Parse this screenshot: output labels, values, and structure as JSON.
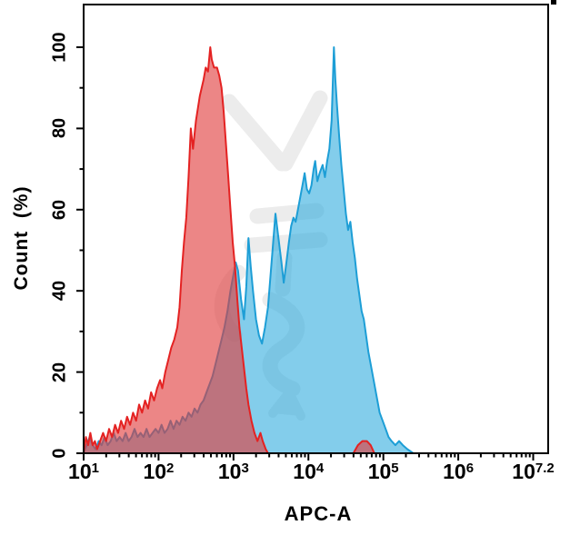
{
  "figure": {
    "xlabel": "APC-A",
    "ylabel": "Count  (%)",
    "background": "#ffffff",
    "frame_color": "#000000"
  },
  "chart_data": {
    "type": "area",
    "title": "",
    "subtitle": "",
    "xlabel": "APC-A",
    "ylabel": "Count (%)",
    "x_scale": "log10",
    "x_range_exp": [
      1,
      7.2
    ],
    "y_range": [
      0,
      100
    ],
    "grid": false,
    "legend": "none",
    "x_ticks": [
      {
        "base": "10",
        "exp": "1",
        "d": 1
      },
      {
        "base": "10",
        "exp": "2",
        "d": 2
      },
      {
        "base": "10",
        "exp": "3",
        "d": 3
      },
      {
        "base": "10",
        "exp": "4",
        "d": 4
      },
      {
        "base": "10",
        "exp": "5",
        "d": 5
      },
      {
        "base": "10",
        "exp": "6",
        "d": 6
      },
      {
        "base": "10",
        "exp": "7.2",
        "d": 7
      }
    ],
    "x_minor_offsets": [
      0.301,
      0.477,
      0.602,
      0.699,
      0.778,
      0.845,
      0.903,
      0.954
    ],
    "x_minor_decades": [
      1,
      2,
      3,
      4,
      5,
      6
    ],
    "y_ticks": [
      {
        "label": "0",
        "value": 0
      },
      {
        "label": "20",
        "value": 20
      },
      {
        "label": "40",
        "value": 40
      },
      {
        "label": "60",
        "value": 60
      },
      {
        "label": "80",
        "value": 80
      },
      {
        "label": "100",
        "value": 100
      }
    ],
    "y_minor_ticks": [
      10,
      30,
      50,
      70,
      90
    ],
    "series": [
      {
        "name": "blue-filled-histogram",
        "fill": "#2AA9DD",
        "fill_opacity": 0.58,
        "line": "#1D9ED6",
        "line_width": 2,
        "points": [
          [
            1.0,
            0
          ],
          [
            1.04,
            2
          ],
          [
            1.08,
            4
          ],
          [
            1.12,
            2
          ],
          [
            1.16,
            1
          ],
          [
            1.2,
            3
          ],
          [
            1.24,
            2
          ],
          [
            1.28,
            4
          ],
          [
            1.32,
            2
          ],
          [
            1.36,
            3
          ],
          [
            1.4,
            5
          ],
          [
            1.44,
            3
          ],
          [
            1.48,
            4
          ],
          [
            1.52,
            3
          ],
          [
            1.56,
            5
          ],
          [
            1.6,
            3
          ],
          [
            1.64,
            4
          ],
          [
            1.68,
            6
          ],
          [
            1.72,
            4
          ],
          [
            1.76,
            5
          ],
          [
            1.8,
            4
          ],
          [
            1.84,
            6
          ],
          [
            1.88,
            4
          ],
          [
            1.92,
            5
          ],
          [
            1.96,
            6
          ],
          [
            2.0,
            5
          ],
          [
            2.04,
            7
          ],
          [
            2.08,
            5
          ],
          [
            2.12,
            6
          ],
          [
            2.16,
            8
          ],
          [
            2.2,
            6
          ],
          [
            2.24,
            8
          ],
          [
            2.28,
            7
          ],
          [
            2.32,
            9
          ],
          [
            2.36,
            8
          ],
          [
            2.4,
            10
          ],
          [
            2.44,
            9
          ],
          [
            2.48,
            11
          ],
          [
            2.52,
            10
          ],
          [
            2.56,
            12
          ],
          [
            2.6,
            13
          ],
          [
            2.64,
            15
          ],
          [
            2.68,
            17
          ],
          [
            2.72,
            19
          ],
          [
            2.76,
            22
          ],
          [
            2.8,
            25
          ],
          [
            2.84,
            28
          ],
          [
            2.88,
            31
          ],
          [
            2.92,
            35
          ],
          [
            2.96,
            40
          ],
          [
            3.0,
            44
          ],
          [
            3.03,
            47
          ],
          [
            3.06,
            45
          ],
          [
            3.1,
            38
          ],
          [
            3.14,
            33
          ],
          [
            3.17,
            41
          ],
          [
            3.2,
            53
          ],
          [
            3.23,
            46
          ],
          [
            3.26,
            40
          ],
          [
            3.3,
            33
          ],
          [
            3.34,
            29
          ],
          [
            3.38,
            27
          ],
          [
            3.42,
            31
          ],
          [
            3.46,
            36
          ],
          [
            3.5,
            45
          ],
          [
            3.53,
            52
          ],
          [
            3.56,
            59
          ],
          [
            3.6,
            53
          ],
          [
            3.64,
            47
          ],
          [
            3.67,
            42
          ],
          [
            3.7,
            46
          ],
          [
            3.74,
            52
          ],
          [
            3.77,
            56
          ],
          [
            3.8,
            58
          ],
          [
            3.83,
            57
          ],
          [
            3.86,
            60
          ],
          [
            3.89,
            63
          ],
          [
            3.92,
            66
          ],
          [
            3.95,
            69
          ],
          [
            3.98,
            65
          ],
          [
            4.01,
            64
          ],
          [
            4.04,
            66
          ],
          [
            4.07,
            70
          ],
          [
            4.09,
            72
          ],
          [
            4.12,
            67
          ],
          [
            4.15,
            69
          ],
          [
            4.19,
            71
          ],
          [
            4.22,
            68
          ],
          [
            4.25,
            72
          ],
          [
            4.28,
            75
          ],
          [
            4.31,
            82
          ],
          [
            4.34,
            100
          ],
          [
            4.36,
            92
          ],
          [
            4.38,
            86
          ],
          [
            4.41,
            78
          ],
          [
            4.44,
            71
          ],
          [
            4.47,
            65
          ],
          [
            4.5,
            59
          ],
          [
            4.53,
            55
          ],
          [
            4.56,
            57
          ],
          [
            4.59,
            52
          ],
          [
            4.62,
            48
          ],
          [
            4.65,
            43
          ],
          [
            4.68,
            39
          ],
          [
            4.71,
            35
          ],
          [
            4.74,
            33
          ],
          [
            4.77,
            29
          ],
          [
            4.8,
            25
          ],
          [
            4.83,
            22
          ],
          [
            4.87,
            18
          ],
          [
            4.91,
            14
          ],
          [
            4.95,
            10
          ],
          [
            4.99,
            8
          ],
          [
            5.03,
            6
          ],
          [
            5.07,
            4
          ],
          [
            5.11,
            3
          ],
          [
            5.16,
            2
          ],
          [
            5.21,
            3
          ],
          [
            5.26,
            2
          ],
          [
            5.32,
            1
          ],
          [
            5.4,
            0
          ]
        ]
      },
      {
        "name": "red-filled-histogram",
        "fill": "#E03C3C",
        "fill_opacity": 0.62,
        "line": "#E42222",
        "line_width": 2,
        "points": [
          [
            1.0,
            0
          ],
          [
            1.03,
            4
          ],
          [
            1.06,
            2
          ],
          [
            1.09,
            5
          ],
          [
            1.12,
            2
          ],
          [
            1.15,
            3
          ],
          [
            1.18,
            1
          ],
          [
            1.22,
            3
          ],
          [
            1.26,
            5
          ],
          [
            1.3,
            3
          ],
          [
            1.34,
            6
          ],
          [
            1.38,
            4
          ],
          [
            1.42,
            7
          ],
          [
            1.46,
            5
          ],
          [
            1.5,
            8
          ],
          [
            1.54,
            6
          ],
          [
            1.58,
            9
          ],
          [
            1.62,
            7
          ],
          [
            1.66,
            10
          ],
          [
            1.7,
            8
          ],
          [
            1.74,
            12
          ],
          [
            1.78,
            10
          ],
          [
            1.82,
            13
          ],
          [
            1.86,
            11
          ],
          [
            1.9,
            15
          ],
          [
            1.94,
            13
          ],
          [
            1.98,
            16
          ],
          [
            2.02,
            18
          ],
          [
            2.05,
            16
          ],
          [
            2.09,
            20
          ],
          [
            2.13,
            23
          ],
          [
            2.17,
            26
          ],
          [
            2.21,
            28
          ],
          [
            2.25,
            31
          ],
          [
            2.28,
            36
          ],
          [
            2.31,
            45
          ],
          [
            2.34,
            52
          ],
          [
            2.37,
            58
          ],
          [
            2.4,
            68
          ],
          [
            2.43,
            80
          ],
          [
            2.46,
            75
          ],
          [
            2.5,
            82
          ],
          [
            2.55,
            88
          ],
          [
            2.6,
            92
          ],
          [
            2.63,
            95
          ],
          [
            2.66,
            94
          ],
          [
            2.69,
            100
          ],
          [
            2.71,
            97
          ],
          [
            2.74,
            95
          ],
          [
            2.78,
            95
          ],
          [
            2.81,
            93
          ],
          [
            2.84,
            90
          ],
          [
            2.87,
            84
          ],
          [
            2.9,
            76
          ],
          [
            2.93,
            68
          ],
          [
            2.96,
            60
          ],
          [
            2.99,
            52
          ],
          [
            3.02,
            46
          ],
          [
            3.05,
            38
          ],
          [
            3.08,
            31
          ],
          [
            3.11,
            26
          ],
          [
            3.14,
            21
          ],
          [
            3.17,
            16
          ],
          [
            3.2,
            12
          ],
          [
            3.24,
            8
          ],
          [
            3.28,
            5
          ],
          [
            3.32,
            3
          ],
          [
            3.36,
            5
          ],
          [
            3.39,
            3
          ],
          [
            3.43,
            1
          ],
          [
            3.46,
            0
          ],
          [
            4.6,
            0
          ],
          [
            4.66,
            2
          ],
          [
            4.72,
            3
          ],
          [
            4.78,
            3
          ],
          [
            4.83,
            2
          ],
          [
            4.88,
            0
          ]
        ]
      }
    ],
    "watermark_color": "#ececec"
  }
}
